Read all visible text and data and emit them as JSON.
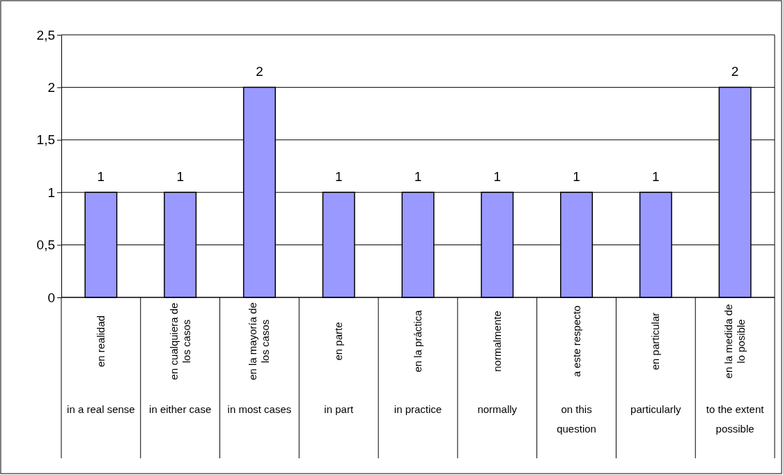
{
  "chart_data": {
    "type": "bar",
    "categories": [
      "en realidad\nin a real sense",
      "en cualquiera de los casos\nin either case",
      "en la mayoría de los casos\nin most cases",
      "en parte\nin part",
      "en la práctica\nin practice",
      "normalmente\nnormally",
      "a este respecto\non this question",
      "en particular\nparticularly",
      "en la medida de lo posible\nto the extent possible"
    ],
    "values": [
      1,
      1,
      2,
      1,
      1,
      1,
      1,
      1,
      2
    ],
    "color": "#9999ff",
    "ylim": [
      0,
      2.5
    ],
    "yticks": [
      0,
      {
        "value": 0.5,
        "label": "0,5"
      },
      1,
      {
        "value": 1.5,
        "label": "1,5"
      },
      2,
      {
        "value": 2.5,
        "label": "2,5"
      }
    ],
    "grid": "y",
    "data_labels": true
  }
}
